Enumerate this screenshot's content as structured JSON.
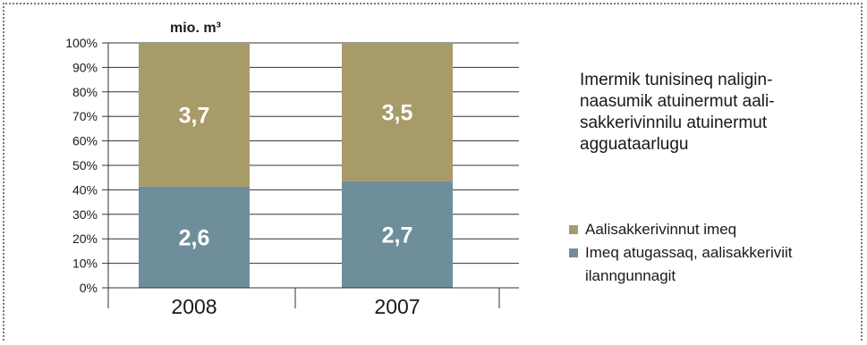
{
  "frame": {
    "border_color": "#7a7a7a",
    "style": "dotted"
  },
  "chart_data": {
    "type": "bar",
    "stacked": true,
    "percent_stacked": true,
    "unit_label": "mio. m³",
    "categories": [
      "2008",
      "2007"
    ],
    "series": [
      {
        "name": "Imeq atugassaq, aalisakkeriviit ilanngunnagit",
        "values": [
          2.6,
          2.7
        ],
        "labels": [
          "2,6",
          "2,7"
        ],
        "color": "#6f8e9b"
      },
      {
        "name": "Aalisakkerivinnut imeq",
        "values": [
          3.7,
          3.5
        ],
        "labels": [
          "3,7",
          "3,5"
        ],
        "color": "#a89b6a"
      }
    ],
    "yticks": [
      "0%",
      "10%",
      "20%",
      "30%",
      "40%",
      "50%",
      "60%",
      "70%",
      "80%",
      "90%",
      "100%"
    ],
    "ylim": [
      0,
      100
    ],
    "grid": true,
    "legend_position": "right"
  },
  "side_note": {
    "lines": [
      "Imermik tunisineq naligin-",
      "naasumik atuinermut aali-",
      "sakkerivinnilu atuinermut",
      "agguataarlugu"
    ]
  },
  "legend": {
    "items": [
      {
        "lines": [
          "Aalisakkerivinnut imeq"
        ],
        "color": "#a89b6a"
      },
      {
        "lines": [
          "Imeq atugassaq, aalisakkeriviit",
          "ilanngunnagit"
        ],
        "color": "#6f8e9b"
      }
    ]
  }
}
